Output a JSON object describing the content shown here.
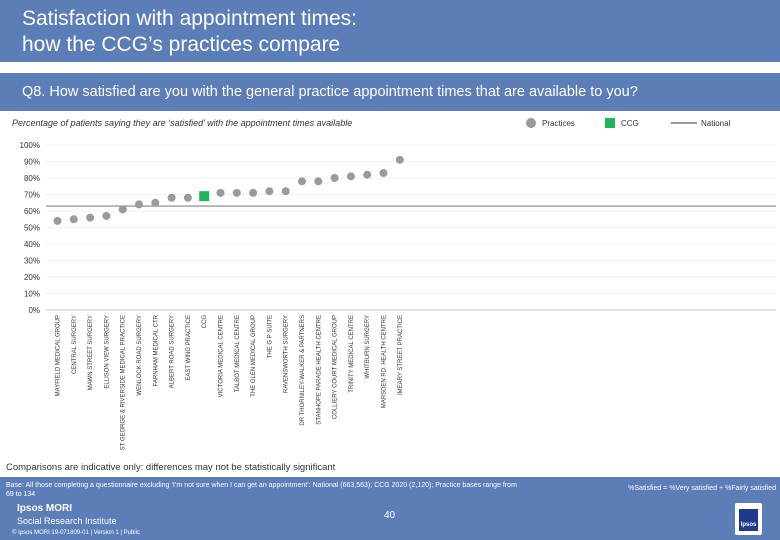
{
  "header": {
    "title_line1": "Satisfaction with appointment times:",
    "title_line2": "how the CCG’s practices compare",
    "question": "Q8. How satisfied are you with the general practice appointment times that are available to you?"
  },
  "subtitle": "Percentage of patients saying they are ‘satisfied’ with the appointment times available",
  "legend": {
    "practices": "Practices",
    "ccg": "CCG",
    "national": "National"
  },
  "colors": {
    "practice": "#9a9a9a",
    "ccg": "#22b45a",
    "national": "#9a9a9a",
    "band": "#5b7db8"
  },
  "chart_data": {
    "type": "scatter",
    "ylim": [
      0,
      100
    ],
    "y_ticks": [
      "0%",
      "10%",
      "20%",
      "30%",
      "40%",
      "50%",
      "60%",
      "70%",
      "80%",
      "90%",
      "100%"
    ],
    "national": 63,
    "categories": [
      "MAYFIELD MEDICAL GROUP",
      "CENTRAL SURGERY",
      "MAWN STREET SURGERY",
      "ELLISON VIEW SURGERY",
      "ST GEORGE & RIVERSIDE MEDICAL PRACTICE",
      "WENLOCK ROAD SURGERY",
      "FARNHAM MEDICAL CTR",
      "ALBERT ROAD SURGERY",
      "EAST WING PRACTICE",
      "CCG",
      "VICTORIA MEDICAL CENTRE",
      "TALBOT MEDICAL CENTRE",
      "THE GLEN MEDICAL GROUP",
      "THE G P SUITE",
      "RAVENSWORTH SURGERY",
      "DR THORNILEY-WALKER & PARTNERS",
      "STANHOPE PARADE HEALTH CENTRE",
      "COLLIERY COURT MEDICAL GROUP",
      "TRINITY MEDICAL CENTRE",
      "WHITBURN SURGERY",
      "MARSDEN RD. HEALTH CENTRE",
      "IMEARY STREET PRACTICE"
    ],
    "values": [
      54,
      55,
      56,
      57,
      61,
      64,
      65,
      68,
      68,
      69,
      71,
      71,
      71,
      72,
      72,
      78,
      78,
      80,
      81,
      82,
      83,
      91
    ],
    "ccg_index": 9
  },
  "note": "Comparisons are indicative only: differences may not be statistically significant",
  "footer": {
    "base": "Base: All those completing a questionnaire excluding ‘I’m not sure when I can get an appointment’: National (663,563); CCG 2020 (2,120); Practice bases range from 69 to 134",
    "formula": "%Satisfied = %Very satisfied + %Fairly satisfied",
    "page": "40",
    "logo_line1": "Ipsos MORI",
    "logo_line2": "Social Research Institute",
    "copyright": "© Ipsos MORI    19-071809-01 | Version 1 | Public",
    "ipsos": "Ipsos"
  }
}
